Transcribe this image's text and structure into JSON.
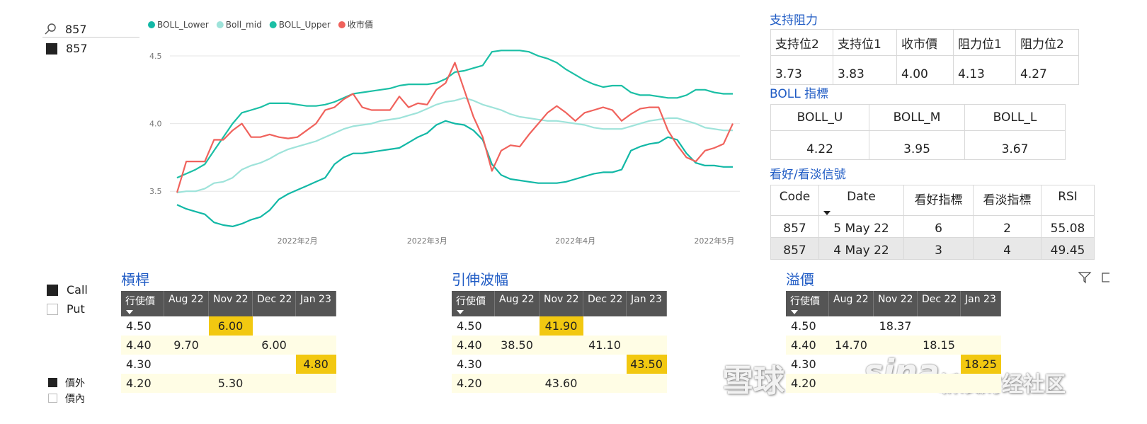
{
  "slicer": {
    "search": "857",
    "items": [
      "857"
    ]
  },
  "chart_data": {
    "type": "line",
    "categories": [
      null,
      null,
      null,
      null,
      null,
      null,
      null,
      null,
      null,
      null,
      null,
      null,
      null,
      "2022年2月",
      null,
      null,
      null,
      null,
      null,
      null,
      null,
      null,
      null,
      null,
      null,
      null,
      null,
      "2022年3月",
      null,
      null,
      null,
      null,
      null,
      null,
      null,
      null,
      null,
      null,
      null,
      null,
      null,
      null,
      null,
      "2022年4月",
      null,
      null,
      null,
      null,
      null,
      null,
      null,
      null,
      null,
      null,
      null,
      null,
      null,
      null,
      "2022年5月",
      null,
      null
    ],
    "series": [
      {
        "name": "BOLL_Lower",
        "color": "#12b8a6",
        "values": [
          3.4,
          3.37,
          3.35,
          3.33,
          3.27,
          3.25,
          3.24,
          3.26,
          3.29,
          3.31,
          3.36,
          3.44,
          3.48,
          3.51,
          3.54,
          3.57,
          3.6,
          3.7,
          3.75,
          3.78,
          3.78,
          3.79,
          3.8,
          3.81,
          3.82,
          3.86,
          3.9,
          3.93,
          3.99,
          4.02,
          4.0,
          3.99,
          3.95,
          3.88,
          3.7,
          3.62,
          3.59,
          3.58,
          3.57,
          3.56,
          3.56,
          3.56,
          3.57,
          3.59,
          3.61,
          3.63,
          3.64,
          3.64,
          3.66,
          3.8,
          3.83,
          3.85,
          3.86,
          3.9,
          3.88,
          3.78,
          3.71,
          3.69,
          3.69,
          3.68,
          3.68
        ]
      },
      {
        "name": "Boll_mid",
        "color": "#9ee3da",
        "values": [
          3.49,
          3.5,
          3.5,
          3.52,
          3.56,
          3.57,
          3.6,
          3.66,
          3.69,
          3.71,
          3.74,
          3.78,
          3.81,
          3.83,
          3.85,
          3.87,
          3.9,
          3.93,
          3.96,
          3.98,
          3.99,
          4.0,
          4.02,
          4.03,
          4.04,
          4.06,
          4.08,
          4.11,
          4.14,
          4.16,
          4.17,
          4.19,
          4.17,
          4.14,
          4.12,
          4.1,
          4.07,
          4.05,
          4.04,
          4.03,
          4.02,
          4.02,
          4.01,
          4.0,
          3.99,
          3.97,
          3.96,
          3.96,
          3.96,
          3.98,
          4.0,
          4.02,
          4.03,
          4.04,
          4.04,
          4.02,
          4.0,
          3.97,
          3.96,
          3.95,
          3.95
        ]
      },
      {
        "name": "BOLL_Upper",
        "color": "#1bbfa5",
        "values": [
          3.6,
          3.63,
          3.66,
          3.7,
          3.8,
          3.9,
          4.0,
          4.08,
          4.1,
          4.12,
          4.15,
          4.15,
          4.15,
          4.14,
          4.13,
          4.13,
          4.14,
          4.16,
          4.19,
          4.22,
          4.23,
          4.24,
          4.25,
          4.26,
          4.28,
          4.29,
          4.29,
          4.29,
          4.3,
          4.33,
          4.38,
          4.39,
          4.41,
          4.43,
          4.53,
          4.54,
          4.54,
          4.54,
          4.53,
          4.5,
          4.48,
          4.45,
          4.4,
          4.36,
          4.32,
          4.29,
          4.27,
          4.28,
          4.28,
          4.23,
          4.21,
          4.21,
          4.2,
          4.19,
          4.19,
          4.21,
          4.25,
          4.25,
          4.23,
          4.22,
          4.22
        ]
      },
      {
        "name": "收市價",
        "color": "#f0625c",
        "values": [
          3.49,
          3.72,
          3.72,
          3.72,
          3.88,
          3.88,
          3.95,
          4.0,
          3.9,
          3.9,
          3.92,
          3.9,
          3.89,
          3.9,
          3.95,
          4.0,
          4.1,
          4.12,
          4.18,
          4.22,
          4.12,
          4.1,
          4.1,
          4.1,
          4.2,
          4.12,
          4.15,
          4.14,
          4.25,
          4.3,
          4.45,
          4.25,
          4.05,
          3.9,
          3.65,
          3.8,
          3.84,
          3.83,
          3.92,
          4.0,
          4.08,
          4.13,
          4.08,
          4.02,
          4.08,
          4.1,
          4.12,
          4.1,
          4.02,
          4.07,
          4.11,
          4.12,
          4.12,
          3.95,
          3.84,
          3.75,
          3.72,
          3.8,
          3.82,
          3.85,
          4.0
        ]
      }
    ],
    "ylim": [
      3.2,
      4.55
    ],
    "yticks": [
      3.5,
      {
        "value": 4,
        "label": "4.0"
      },
      4.5
    ],
    "grid": true
  },
  "support_table": {
    "title": "支持阻力",
    "headers": [
      "支持位2",
      "支持位1",
      "收市價",
      "阻力位1",
      "阻力位2"
    ],
    "rows": [
      [
        "3.73",
        "3.83",
        "4.00",
        "4.13",
        "4.27"
      ]
    ]
  },
  "boll_table": {
    "title": "BOLL 指標",
    "headers": [
      "BOLL_U",
      "BOLL_M",
      "BOLL_L"
    ],
    "rows": [
      [
        "4.22",
        "3.95",
        "3.67"
      ]
    ]
  },
  "signal_table": {
    "title": "看好/看淡信號",
    "headers": [
      "Code",
      "Date",
      "看好指標",
      "看淡指標",
      "RSI"
    ],
    "rows": [
      [
        "857",
        "5 May 22",
        "6",
        "2",
        "55.08"
      ],
      [
        "857",
        "4 May 22",
        "3",
        "4",
        "49.45"
      ]
    ]
  },
  "option_type": {
    "items": [
      "Call",
      "Put"
    ]
  },
  "moneyness": {
    "items": [
      "價外",
      "價內"
    ]
  },
  "matrices": [
    {
      "title": "槓桿",
      "headers": [
        "行使價",
        "Aug 22",
        "Nov 22",
        "Dec 22",
        "Jan 23"
      ],
      "rows": [
        [
          "4.50",
          null,
          "6.00",
          null,
          null
        ],
        [
          "4.40",
          "9.70",
          null,
          "6.00",
          null
        ],
        [
          "4.30",
          null,
          null,
          null,
          "4.80"
        ],
        [
          "4.20",
          null,
          "5.30",
          null,
          null
        ]
      ],
      "highlighted": [
        [
          0,
          2
        ],
        [
          1,
          1
        ],
        [
          1,
          3
        ],
        [
          2,
          4
        ]
      ]
    },
    {
      "title": "引伸波幅",
      "headers": [
        "行使價",
        "Aug 22",
        "Nov 22",
        "Dec 22",
        "Jan 23"
      ],
      "rows": [
        [
          "4.50",
          null,
          "41.90",
          null,
          null
        ],
        [
          "4.40",
          "38.50",
          null,
          "41.10",
          null
        ],
        [
          "4.30",
          null,
          null,
          null,
          "43.50"
        ],
        [
          "4.20",
          null,
          "43.60",
          null,
          null
        ]
      ],
      "highlighted": [
        [
          0,
          2
        ],
        [
          1,
          1
        ],
        [
          1,
          3
        ],
        [
          2,
          4
        ]
      ]
    },
    {
      "title": "溢價",
      "headers": [
        "行使價",
        "Aug 22",
        "Nov 22",
        "Dec 22",
        "Jan 23"
      ],
      "rows": [
        [
          "4.50",
          null,
          "18.37",
          null,
          null
        ],
        [
          "4.40",
          "14.70",
          null,
          "18.15",
          null
        ],
        [
          "4.30",
          null,
          null,
          null,
          "18.25"
        ],
        [
          "4.20",
          null,
          null,
          null,
          null
        ]
      ],
      "highlighted": [
        [
          1,
          1
        ],
        [
          1,
          3
        ],
        [
          2,
          4
        ]
      ]
    }
  ],
  "watermark": {
    "left": "雪球",
    "logo": "sina",
    "right": "新浪财经社区"
  }
}
